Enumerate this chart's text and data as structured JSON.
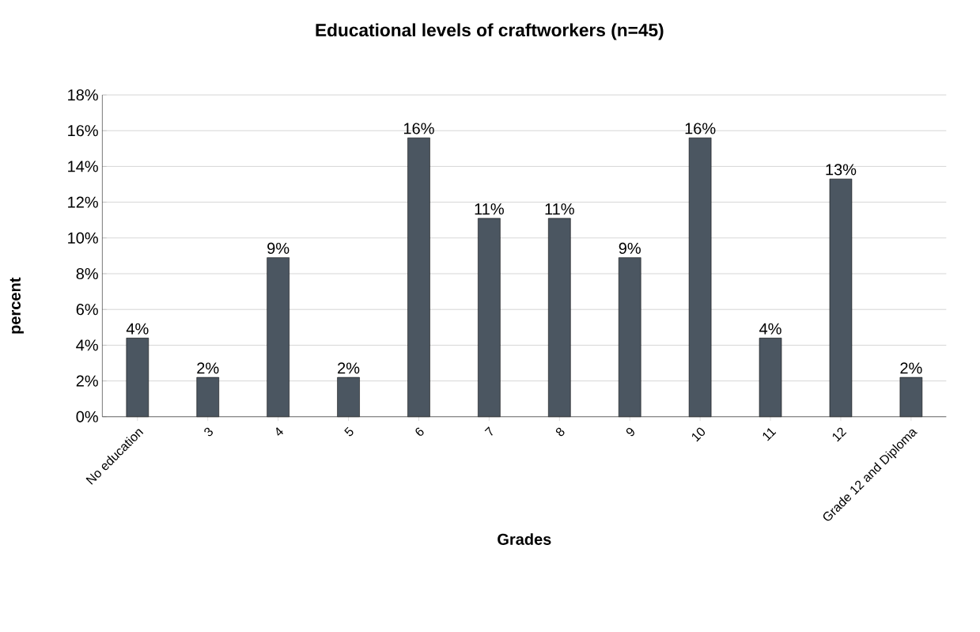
{
  "chart_data": {
    "type": "bar",
    "title": "Educational levels of craftworkers (n=45)",
    "xlabel": "Grades",
    "ylabel": "percent",
    "categories": [
      "No education",
      "3",
      "4",
      "5",
      "6",
      "7",
      "8",
      "9",
      "10",
      "11",
      "12",
      "Grade 12 and Diploma"
    ],
    "values": [
      4.4,
      2.2,
      8.9,
      2.2,
      15.6,
      11.1,
      11.1,
      8.9,
      15.6,
      4.4,
      13.3,
      2.2
    ],
    "value_labels": [
      "4%",
      "2%",
      "9%",
      "2%",
      "16%",
      "11%",
      "11%",
      "9%",
      "16%",
      "4%",
      "13%",
      "2%"
    ],
    "color": "#4b5661",
    "ylim": [
      0,
      18
    ],
    "yticks": [
      {
        "value": 0,
        "label": "0%"
      },
      {
        "value": 2,
        "label": "2%"
      },
      {
        "value": 4,
        "label": "4%"
      },
      {
        "value": 6,
        "label": "6%"
      },
      {
        "value": 8,
        "label": "8%"
      },
      {
        "value": 10,
        "label": "10%"
      },
      {
        "value": 12,
        "label": "12%"
      },
      {
        "value": 14,
        "label": "14%"
      },
      {
        "value": 16,
        "label": "16%"
      },
      {
        "value": 18,
        "label": "18%"
      }
    ],
    "grid": "y"
  }
}
